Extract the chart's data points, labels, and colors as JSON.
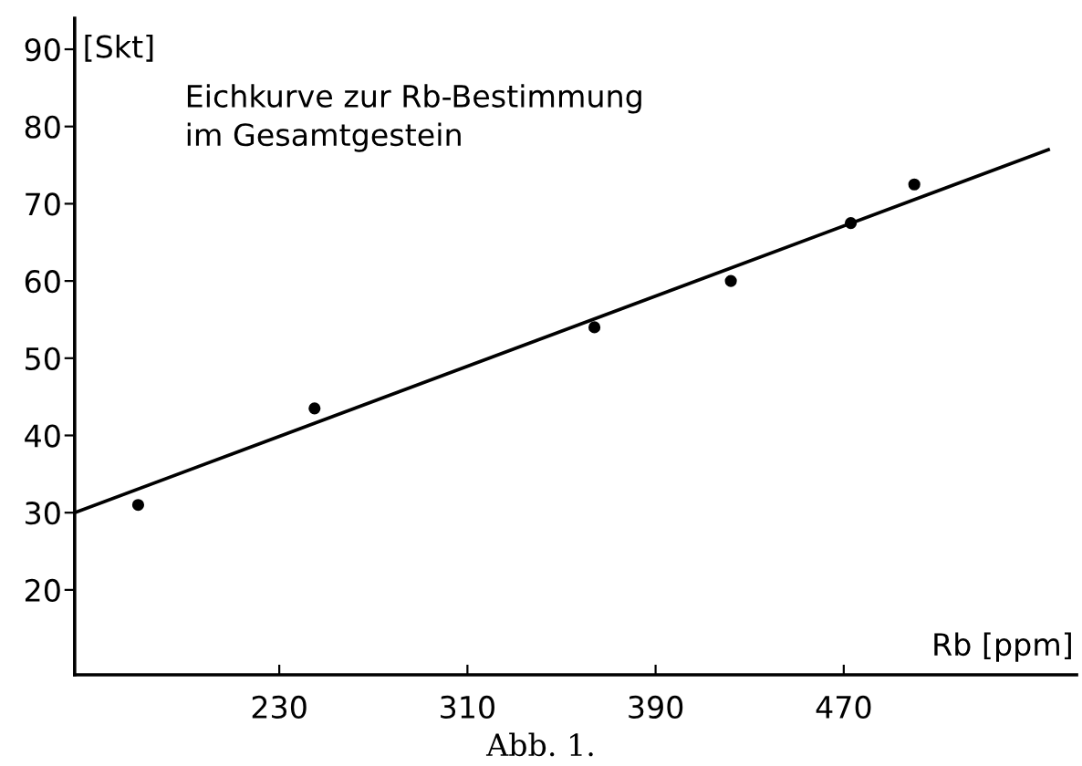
{
  "chart_data": {
    "type": "scatter",
    "title": "Eichkurve zur Rb-Bestimmung\nim Gesamtgestein",
    "xlabel": "Rb [ppm]",
    "ylabel": "[Skt]",
    "annotations": [
      "Abb. 1."
    ],
    "series": [
      {
        "color": "#000000",
        "x": [
          170,
          245,
          364,
          422,
          473,
          500
        ],
        "values": [
          31,
          43.5,
          54,
          60,
          67.5,
          72.5
        ]
      },
      {
        "type": "line",
        "marker": "none",
        "color": "#000000",
        "x": [
          143,
          557
        ],
        "values": [
          30,
          77
        ]
      }
    ],
    "xlim": [
      143,
      569
    ],
    "ylim": [
      9,
      94
    ],
    "xticks": [
      230,
      310,
      390,
      470
    ],
    "yticks": [
      20,
      30,
      40,
      50,
      60,
      70,
      80,
      90
    ],
    "marker": "circle",
    "grid": false,
    "legend": false
  }
}
